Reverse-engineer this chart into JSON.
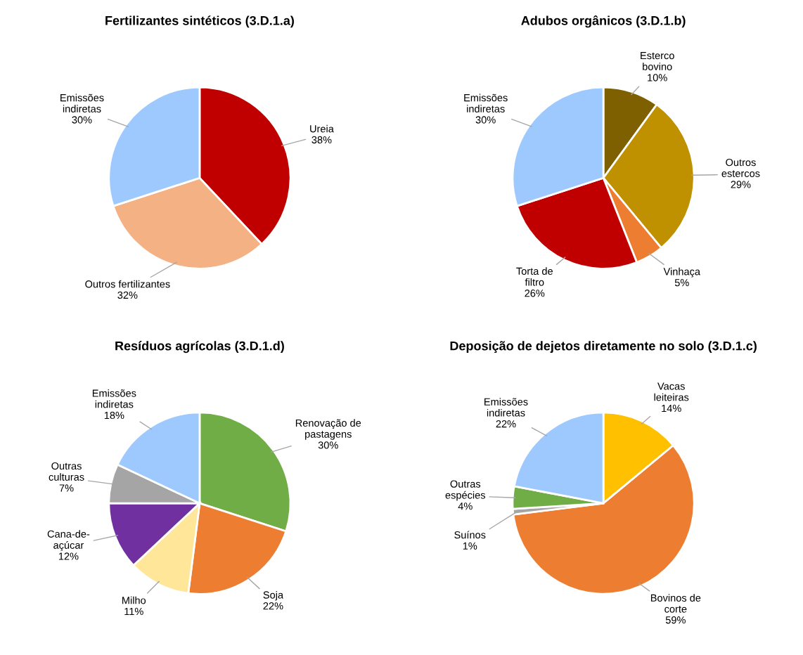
{
  "chart_data": [
    {
      "type": "pie",
      "title": "Fertilizantes sintéticos (3.D.1.a)",
      "categories": [
        "Ureia",
        "Outros fertilizantes",
        "Emissões\nindiretas"
      ],
      "values": [
        38,
        32,
        30
      ],
      "value_labels": [
        "38%",
        "32%",
        "30%"
      ],
      "colors": [
        "#c00000",
        "#f4b183",
        "#9dc9ff"
      ]
    },
    {
      "type": "pie",
      "title": "Adubos orgânicos (3.D.1.b)",
      "categories": [
        "Esterco\nbovino",
        "Outros\nestercos",
        "Vinhaça",
        "Torta de\nfiltro",
        "Emissões\nindiretas"
      ],
      "values": [
        10,
        29,
        5,
        26,
        30
      ],
      "value_labels": [
        "10%",
        "29%",
        "5%",
        "26%",
        "30%"
      ],
      "colors": [
        "#7f6000",
        "#bf9000",
        "#ed7d31",
        "#c00000",
        "#9dc9ff"
      ]
    },
    {
      "type": "pie",
      "title": "Resíduos agrícolas (3.D.1.d)",
      "categories": [
        "Renovação de\npastagens",
        "Soja",
        "Milho",
        "Cana-de-\naçúcar",
        "Outras\nculturas",
        "Emissões\nindiretas"
      ],
      "values": [
        30,
        22,
        11,
        12,
        7,
        18
      ],
      "value_labels": [
        "30%",
        "22%",
        "11%",
        "12%",
        "7%",
        "18%"
      ],
      "colors": [
        "#70ad47",
        "#ed7d31",
        "#ffe699",
        "#7030a0",
        "#a5a5a5",
        "#9dc9ff"
      ]
    },
    {
      "type": "pie",
      "title": "Deposição de dejetos diretamente no solo (3.D.1.c)",
      "categories": [
        "Vacas\nleiteiras",
        "Bovinos de\ncorte",
        "Suínos",
        "Outras\nespécies",
        "Emissões\nindiretas"
      ],
      "values": [
        14,
        59,
        1,
        4,
        22
      ],
      "value_labels": [
        "14%",
        "59%",
        "1%",
        "4%",
        "22%"
      ],
      "colors": [
        "#ffc000",
        "#ed7d31",
        "#a5a5a5",
        "#70ad47",
        "#9dc9ff"
      ]
    }
  ]
}
